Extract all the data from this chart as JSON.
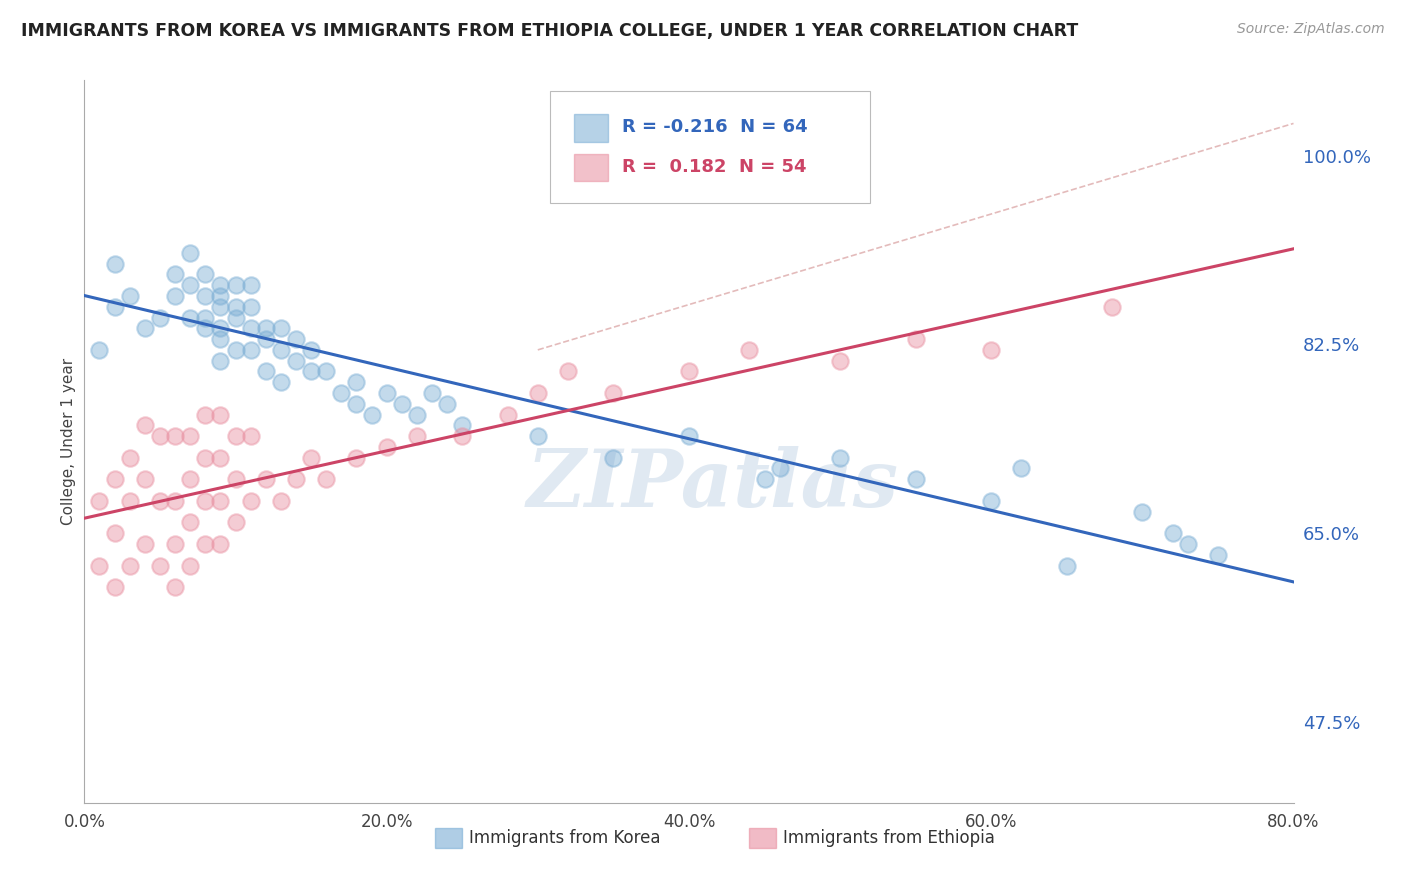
{
  "title": "IMMIGRANTS FROM KOREA VS IMMIGRANTS FROM ETHIOPIA COLLEGE, UNDER 1 YEAR CORRELATION CHART",
  "source": "Source: ZipAtlas.com",
  "ylabel": "College, Under 1 year",
  "x_tick_labels": [
    "0.0%",
    "20.0%",
    "40.0%",
    "60.0%",
    "80.0%"
  ],
  "x_tick_values": [
    0,
    20,
    40,
    60,
    80
  ],
  "y_tick_labels": [
    "47.5%",
    "65.0%",
    "82.5%",
    "100.0%"
  ],
  "y_tick_values": [
    47.5,
    65.0,
    82.5,
    100.0
  ],
  "xlim": [
    0,
    80
  ],
  "ylim": [
    40,
    107
  ],
  "r_korea": -0.216,
  "n_korea": 64,
  "r_ethiopia": 0.182,
  "n_ethiopia": 54,
  "color_korea": "#7aadd4",
  "color_ethiopia": "#e88fa0",
  "trendline_color_korea": "#3366bb",
  "trendline_color_ethiopia": "#cc4466",
  "dashed_color": "#ddaaaa",
  "legend_label_korea": "Immigrants from Korea",
  "legend_label_ethiopia": "Immigrants from Ethiopia",
  "watermark": "ZIPatlas",
  "background_color": "#FFFFFF",
  "grid_color": "#e0e0e0",
  "korea_x": [
    1,
    2,
    2,
    3,
    4,
    5,
    6,
    6,
    7,
    7,
    7,
    8,
    8,
    8,
    8,
    9,
    9,
    9,
    9,
    9,
    9,
    10,
    10,
    10,
    10,
    11,
    11,
    11,
    11,
    12,
    12,
    12,
    13,
    13,
    13,
    14,
    14,
    15,
    15,
    16,
    17,
    18,
    18,
    19,
    20,
    21,
    22,
    23,
    24,
    25,
    30,
    35,
    40,
    45,
    46,
    50,
    55,
    60,
    62,
    65,
    70,
    72,
    73,
    75
  ],
  "korea_y": [
    82,
    86,
    90,
    87,
    84,
    85,
    89,
    87,
    91,
    88,
    85,
    87,
    85,
    89,
    84,
    86,
    88,
    84,
    87,
    83,
    81,
    85,
    82,
    86,
    88,
    84,
    82,
    86,
    88,
    84,
    80,
    83,
    82,
    84,
    79,
    81,
    83,
    80,
    82,
    80,
    78,
    79,
    77,
    76,
    78,
    77,
    76,
    78,
    77,
    75,
    74,
    72,
    74,
    70,
    71,
    72,
    70,
    68,
    71,
    62,
    67,
    65,
    64,
    63
  ],
  "ethiopia_x": [
    1,
    1,
    2,
    2,
    2,
    3,
    3,
    3,
    4,
    4,
    4,
    5,
    5,
    5,
    6,
    6,
    6,
    6,
    7,
    7,
    7,
    7,
    8,
    8,
    8,
    8,
    9,
    9,
    9,
    9,
    10,
    10,
    10,
    11,
    11,
    12,
    13,
    14,
    15,
    16,
    18,
    20,
    22,
    25,
    28,
    30,
    32,
    35,
    40,
    44,
    50,
    55,
    60,
    68
  ],
  "ethiopia_y": [
    62,
    68,
    60,
    65,
    70,
    62,
    68,
    72,
    64,
    70,
    75,
    62,
    68,
    74,
    60,
    64,
    68,
    74,
    62,
    66,
    70,
    74,
    64,
    68,
    72,
    76,
    64,
    68,
    72,
    76,
    66,
    70,
    74,
    68,
    74,
    70,
    68,
    70,
    72,
    70,
    72,
    73,
    74,
    74,
    76,
    78,
    80,
    78,
    80,
    82,
    81,
    83,
    82,
    86
  ],
  "korea_sizes": [
    150,
    120,
    120,
    120,
    100,
    100,
    100,
    100,
    100,
    100,
    100,
    100,
    100,
    100,
    100,
    100,
    100,
    100,
    100,
    100,
    100,
    100,
    100,
    100,
    100,
    100,
    100,
    100,
    100,
    100,
    100,
    100,
    100,
    100,
    100,
    100,
    100,
    100,
    100,
    100,
    100,
    100,
    100,
    100,
    100,
    100,
    100,
    100,
    100,
    100,
    100,
    100,
    100,
    100,
    100,
    100,
    100,
    100,
    100,
    100,
    100,
    100,
    100,
    100
  ],
  "ethiopia_sizes": [
    180,
    180,
    120,
    120,
    120,
    120,
    120,
    120,
    120,
    120,
    120,
    120,
    120,
    120,
    120,
    120,
    120,
    120,
    120,
    120,
    120,
    120,
    120,
    120,
    120,
    120,
    120,
    120,
    120,
    120,
    120,
    120,
    120,
    120,
    120,
    120,
    120,
    120,
    120,
    120,
    120,
    120,
    120,
    120,
    120,
    120,
    120,
    120,
    120,
    120,
    120,
    120,
    120,
    120
  ]
}
